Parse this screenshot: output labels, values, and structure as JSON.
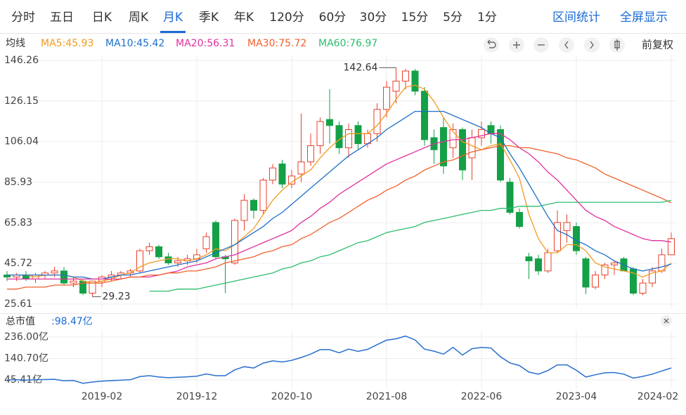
{
  "tabs": {
    "items": [
      "分时",
      "五日",
      "日K",
      "周K",
      "月K",
      "季K",
      "年K",
      "120分",
      "60分",
      "30分",
      "15分",
      "5分",
      "1分"
    ],
    "active": 4
  },
  "links": [
    "区间统计",
    "全屏显示"
  ],
  "adjust": "前复权",
  "chart_data": [
    {
      "type": "candlestick",
      "legend_title": "均线",
      "up_color": "#e8412c",
      "down_color": "#14a047",
      "grid": true,
      "ylim": [
        25.61,
        146.26
      ],
      "yticks": [
        146.26,
        126.15,
        106.04,
        85.93,
        65.83,
        45.72,
        25.61
      ],
      "open": [
        40,
        39,
        40,
        38,
        40,
        41,
        42,
        36,
        37,
        31,
        37,
        39,
        40,
        41,
        42,
        52,
        54,
        49,
        46,
        47,
        48,
        53,
        66,
        49,
        46,
        67,
        77,
        72,
        87,
        95,
        85,
        90,
        96,
        104,
        117,
        114,
        103,
        114,
        105,
        110,
        122,
        131,
        136,
        141,
        131,
        108,
        113,
        103,
        112,
        98,
        108,
        114,
        112,
        86,
        71,
        49,
        48,
        42,
        52,
        62,
        64,
        48,
        34,
        40,
        45,
        48,
        43,
        31,
        36,
        42,
        50
      ],
      "high": [
        42,
        41,
        42,
        41,
        42,
        44,
        44,
        39,
        38,
        37,
        40,
        42,
        42,
        43,
        53,
        56,
        55,
        51,
        49,
        50,
        53,
        61,
        67,
        50,
        68,
        80,
        78,
        88,
        95,
        97,
        92,
        120,
        110,
        118,
        132,
        116,
        115,
        116,
        112,
        125,
        136,
        142.64,
        142,
        142,
        133,
        112,
        118,
        115,
        113,
        112,
        116,
        116,
        114,
        88,
        73,
        51,
        50,
        53,
        72,
        70,
        66,
        49,
        42,
        46,
        47,
        49,
        44,
        38,
        44,
        53,
        61
      ],
      "low": [
        37,
        37,
        37,
        36,
        38,
        39,
        35,
        34,
        30,
        29.23,
        34,
        37,
        38,
        39,
        41,
        50,
        48,
        45,
        44,
        45,
        46,
        51,
        48,
        31,
        45,
        62,
        68,
        70,
        85,
        83,
        83,
        86,
        94,
        100,
        105,
        100,
        98,
        102,
        103,
        106,
        118,
        125,
        132,
        129,
        104,
        95,
        90,
        98,
        87,
        87,
        104,
        105,
        86,
        70,
        63,
        38,
        40,
        41,
        51,
        56,
        50,
        30.5,
        33,
        38,
        40,
        42,
        30,
        30,
        34,
        41,
        50
      ],
      "close": [
        39,
        40,
        38,
        40,
        41,
        42,
        36,
        37,
        31,
        37,
        39,
        40,
        41,
        42,
        52,
        54,
        49,
        46,
        47,
        48,
        50,
        59,
        49,
        48,
        67,
        77,
        72,
        87,
        93,
        85,
        89,
        96,
        104,
        116,
        114,
        103,
        112,
        105,
        110,
        122,
        133,
        136,
        141,
        131,
        107,
        102,
        94,
        112,
        92,
        108,
        112,
        110,
        87,
        71,
        64,
        47,
        42,
        51,
        66,
        66,
        52,
        34,
        40,
        45,
        46,
        42,
        31,
        36,
        42,
        50,
        58
      ],
      "series": [
        {
          "name": "MA5:45.93",
          "color": "#f39a1e",
          "values": [
            40,
            40,
            40,
            39,
            40,
            40,
            40,
            39,
            37,
            36,
            37,
            38,
            40,
            41,
            44,
            46,
            47,
            48,
            48,
            47,
            48,
            50,
            53,
            52,
            55,
            59,
            63,
            70,
            77,
            82,
            86,
            89,
            92,
            98,
            103,
            107,
            110,
            110,
            110,
            114,
            120,
            127,
            133,
            134,
            132,
            126,
            118,
            111,
            106,
            104,
            102,
            104,
            105,
            97,
            88,
            70,
            58,
            51,
            51,
            55,
            55,
            52,
            46,
            44,
            43,
            42,
            41,
            39,
            41,
            42,
            45.93
          ]
        },
        {
          "name": "MA10:45.42",
          "color": "#1e6fc8",
          "values": [
            40,
            40,
            40,
            40,
            40,
            40,
            40,
            39,
            39,
            38,
            38,
            39,
            40,
            40,
            41,
            42,
            43,
            44,
            45,
            46,
            47,
            49,
            51,
            53,
            55,
            58,
            61,
            64,
            68,
            71,
            75,
            79,
            83,
            87,
            91,
            95,
            99,
            102,
            105,
            108,
            112,
            115,
            118,
            121,
            121,
            121,
            121,
            119,
            117,
            115,
            113,
            110,
            108,
            100,
            93,
            85,
            77,
            69,
            62,
            60,
            57,
            55,
            52,
            50,
            47,
            45,
            43,
            42,
            43,
            44,
            45.42
          ]
        },
        {
          "name": "MA20:56.31",
          "color": "#e0309e",
          "values": [
            38,
            38,
            38,
            38,
            38,
            38,
            38,
            38,
            38,
            38,
            38,
            38,
            38,
            39,
            39,
            39,
            40,
            41,
            42,
            44,
            45,
            46,
            48,
            49,
            50,
            52,
            54,
            56,
            58,
            60,
            62,
            66,
            69,
            73,
            76,
            80,
            83,
            86,
            89,
            92,
            95,
            97,
            99,
            101,
            103,
            105,
            106,
            107,
            107,
            108,
            109,
            110,
            110,
            107,
            103,
            100,
            96,
            91,
            87,
            82,
            77,
            72,
            69,
            67,
            64,
            62,
            60,
            58,
            57,
            57,
            56.31
          ]
        },
        {
          "name": "MA30:75.72",
          "color": "#f0602c",
          "values": [
            33,
            33,
            34,
            34,
            34,
            35,
            35,
            35,
            36,
            36,
            36,
            37,
            38,
            39,
            39,
            40,
            40,
            41,
            41,
            42,
            42,
            43,
            44,
            46,
            47,
            48,
            49,
            51,
            52,
            54,
            55,
            58,
            60,
            63,
            66,
            68,
            71,
            74,
            77,
            79,
            82,
            84,
            87,
            89,
            92,
            94,
            96,
            97,
            99,
            101,
            102,
            103,
            104,
            104,
            103,
            103,
            102,
            101,
            100,
            98,
            97,
            95,
            93,
            90,
            88,
            86,
            84,
            82,
            80,
            78,
            75.72
          ]
        },
        {
          "name": "MA60:76.97",
          "color": "#2dbd6e",
          "values": [
            null,
            null,
            null,
            null,
            null,
            null,
            null,
            null,
            null,
            null,
            null,
            null,
            null,
            null,
            null,
            32,
            32,
            32,
            33,
            33,
            33,
            34,
            35,
            36,
            37,
            38,
            39,
            40,
            41,
            43,
            44,
            46,
            47,
            49,
            50,
            52,
            54,
            56,
            57,
            59,
            61,
            62,
            63,
            64,
            66,
            67,
            68,
            69,
            70,
            71,
            72,
            72,
            73,
            73,
            74,
            74,
            74,
            75,
            76,
            76,
            76,
            76,
            76,
            76,
            76,
            76,
            76,
            76,
            76,
            76,
            76.97
          ]
        }
      ]
    },
    {
      "type": "line",
      "title": "总市值",
      "subtitle": ":98.47亿",
      "color": "#2a6fcf",
      "grid": true,
      "ylim": [
        11,
        267
      ],
      "yticks": [
        {
          "value": 236,
          "label": "236.00亿"
        },
        {
          "value": 140.7,
          "label": "140.70亿"
        },
        {
          "value": 45.41,
          "label": "45.41亿"
        }
      ],
      "categories": [
        null,
        null,
        null,
        null,
        null,
        null,
        null,
        null,
        null,
        null,
        "2019-02",
        null,
        null,
        null,
        null,
        null,
        null,
        null,
        null,
        null,
        "2019-12",
        null,
        null,
        null,
        null,
        null,
        null,
        null,
        null,
        null,
        "2020-10",
        null,
        null,
        null,
        null,
        null,
        null,
        null,
        null,
        null,
        "2021-08",
        null,
        null,
        null,
        null,
        null,
        null,
        null,
        null,
        null,
        "2022-06",
        null,
        null,
        null,
        null,
        null,
        null,
        null,
        null,
        null,
        "2023-04",
        null,
        null,
        null,
        null,
        null,
        null,
        null,
        null,
        null,
        "2024-02"
      ],
      "values": [
        45,
        46,
        44,
        46,
        47,
        48,
        41,
        43,
        30,
        36,
        40,
        42,
        44,
        46,
        60,
        64,
        58,
        55,
        57,
        59,
        62,
        72,
        64,
        64,
        90,
        104,
        98,
        120,
        130,
        125,
        132,
        145,
        160,
        180,
        180,
        166,
        182,
        172,
        181,
        202,
        222,
        228,
        240,
        223,
        182,
        173,
        160,
        190,
        156,
        184,
        190,
        187,
        148,
        121,
        109,
        80,
        71,
        87,
        112,
        112,
        88,
        58,
        68,
        77,
        78,
        71,
        53,
        61,
        71,
        85,
        98.47
      ]
    }
  ]
}
